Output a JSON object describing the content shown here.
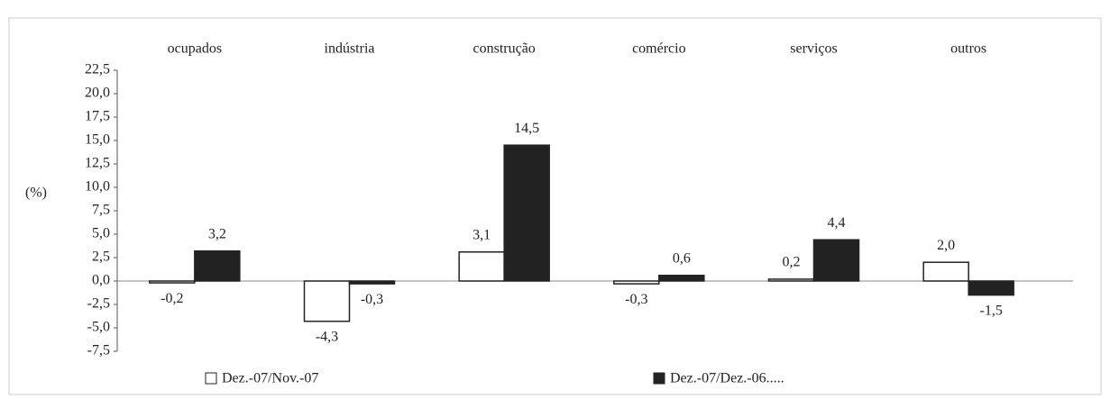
{
  "chart_data": {
    "type": "bar",
    "y_label": "(%)",
    "categories": [
      "ocupados",
      "indústria",
      "construção",
      "comércio",
      "serviços",
      "outros"
    ],
    "series": [
      {
        "name": "Dez.-07/Nov.-07",
        "color": "#ffffff",
        "values": [
          -0.2,
          -4.3,
          3.1,
          -0.3,
          0.2,
          2.0
        ],
        "value_labels": [
          "-0,2",
          "-4,3",
          "3,1",
          "-0,3",
          "0,2",
          "2,0"
        ]
      },
      {
        "name": "Dez.-07/Dez.-06.....",
        "color": "#222222",
        "values": [
          3.2,
          -0.3,
          14.5,
          0.6,
          4.4,
          -1.5
        ],
        "value_labels": [
          "3,2",
          "-0,3",
          "14,5",
          "0,6",
          "4,4",
          "-1,5"
        ]
      }
    ],
    "ylim": [
      -7.5,
      22.5
    ],
    "yticks": [
      {
        "value": -7.5,
        "label": "-7,5"
      },
      {
        "value": -5,
        "label": "-5,0"
      },
      {
        "value": -2.5,
        "label": "-2,5"
      },
      {
        "value": 0,
        "label": "0,0"
      },
      {
        "value": 2.5,
        "label": "2,5"
      },
      {
        "value": 5,
        "label": "5,0"
      },
      {
        "value": 7.5,
        "label": "7,5"
      },
      {
        "value": 10,
        "label": "10,0"
      },
      {
        "value": 12.5,
        "label": "12,5"
      },
      {
        "value": 15,
        "label": "15,0"
      },
      {
        "value": 17.5,
        "label": "17,5"
      },
      {
        "value": 20,
        "label": "20,0"
      },
      {
        "value": 22.5,
        "label": "22,5"
      }
    ]
  }
}
